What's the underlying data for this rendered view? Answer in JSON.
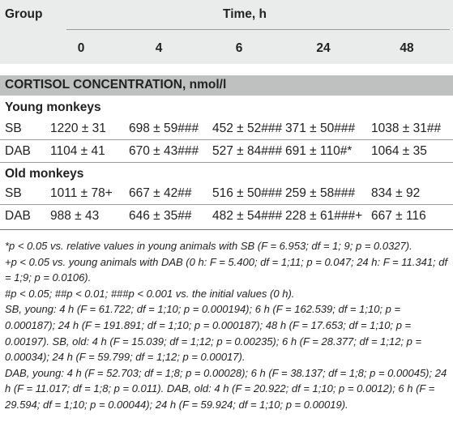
{
  "header": {
    "group_label": "Group",
    "time_label": "Time, h",
    "time_points": [
      "0",
      "4",
      "6",
      "24",
      "48"
    ]
  },
  "section_title": "CORTISOL CONCENTRATION, nmol/l",
  "groups": [
    {
      "title": "Young monkeys",
      "rows": [
        {
          "label": "SB",
          "values": [
            "1220 ± 31",
            "698 ± 59###",
            "452 ± 52###",
            "371 ± 50###",
            "1038 ± 31##"
          ]
        },
        {
          "label": "DAB",
          "values": [
            "1104 ± 41",
            "670 ± 43###",
            "527 ± 84###",
            "691 ± 110#*",
            "1064 ± 35"
          ]
        }
      ]
    },
    {
      "title": "Old monkeys",
      "rows": [
        {
          "label": "SB",
          "values": [
            "1011 ± 78+",
            "667 ± 42##",
            "516 ± 50###",
            "259 ± 58###",
            "834 ± 92"
          ]
        },
        {
          "label": "DAB",
          "values": [
            "988 ± 43",
            "646 ± 35##",
            "482 ± 54###",
            "228 ± 61###+",
            "667 ± 116"
          ]
        }
      ]
    }
  ],
  "footnotes": [
    "*p < 0.05 vs. relative values in young animals with SB (F = 6.953; df = 1; 9; p = 0.0327).",
    "+p < 0.05 vs. young animals with DAB (0 h: F = 5.400; df = 1;11; p = 0.047; 24 h: F = 11.341; df = 1;9; p = 0.0106).",
    "#p < 0.05; ##p < 0.01; ###p < 0.001 vs. the initial values (0 h).",
    "SB, young: 4 h (F = 61.722; df = 1;10; p = 0.000194); 6 h (F = 162.539; df = 1;10; p = 0.000187); 24 h (F = 191.891; df = 1;10; p = 0.000187); 48 h (F = 17.653; df = 1;10; p = 0.00197). SB, old: 4 h (F = 15.039; df = 1;12; p = 0.00235); 6 h (F = 28.377; df = 1;12; p = 0.00034); 24 h (F = 59.799; df = 1;12; p = 0.00017).",
    "DAB, young: 4 h (F = 52.703; df = 1;8; p = 0.00028); 6 h (F = 38.137; df = 1;8; p = 0.00045); 24 h (F = 11.017; df = 1;8; p = 0.011). DAB, old: 4 h (F = 20.922; df = 1;10; p = 0.0012); 6 h (F = 29.594; df = 1;10; p = 0.00044); 24 h (F = 59.924; df = 1;10; p = 0.00019)."
  ]
}
